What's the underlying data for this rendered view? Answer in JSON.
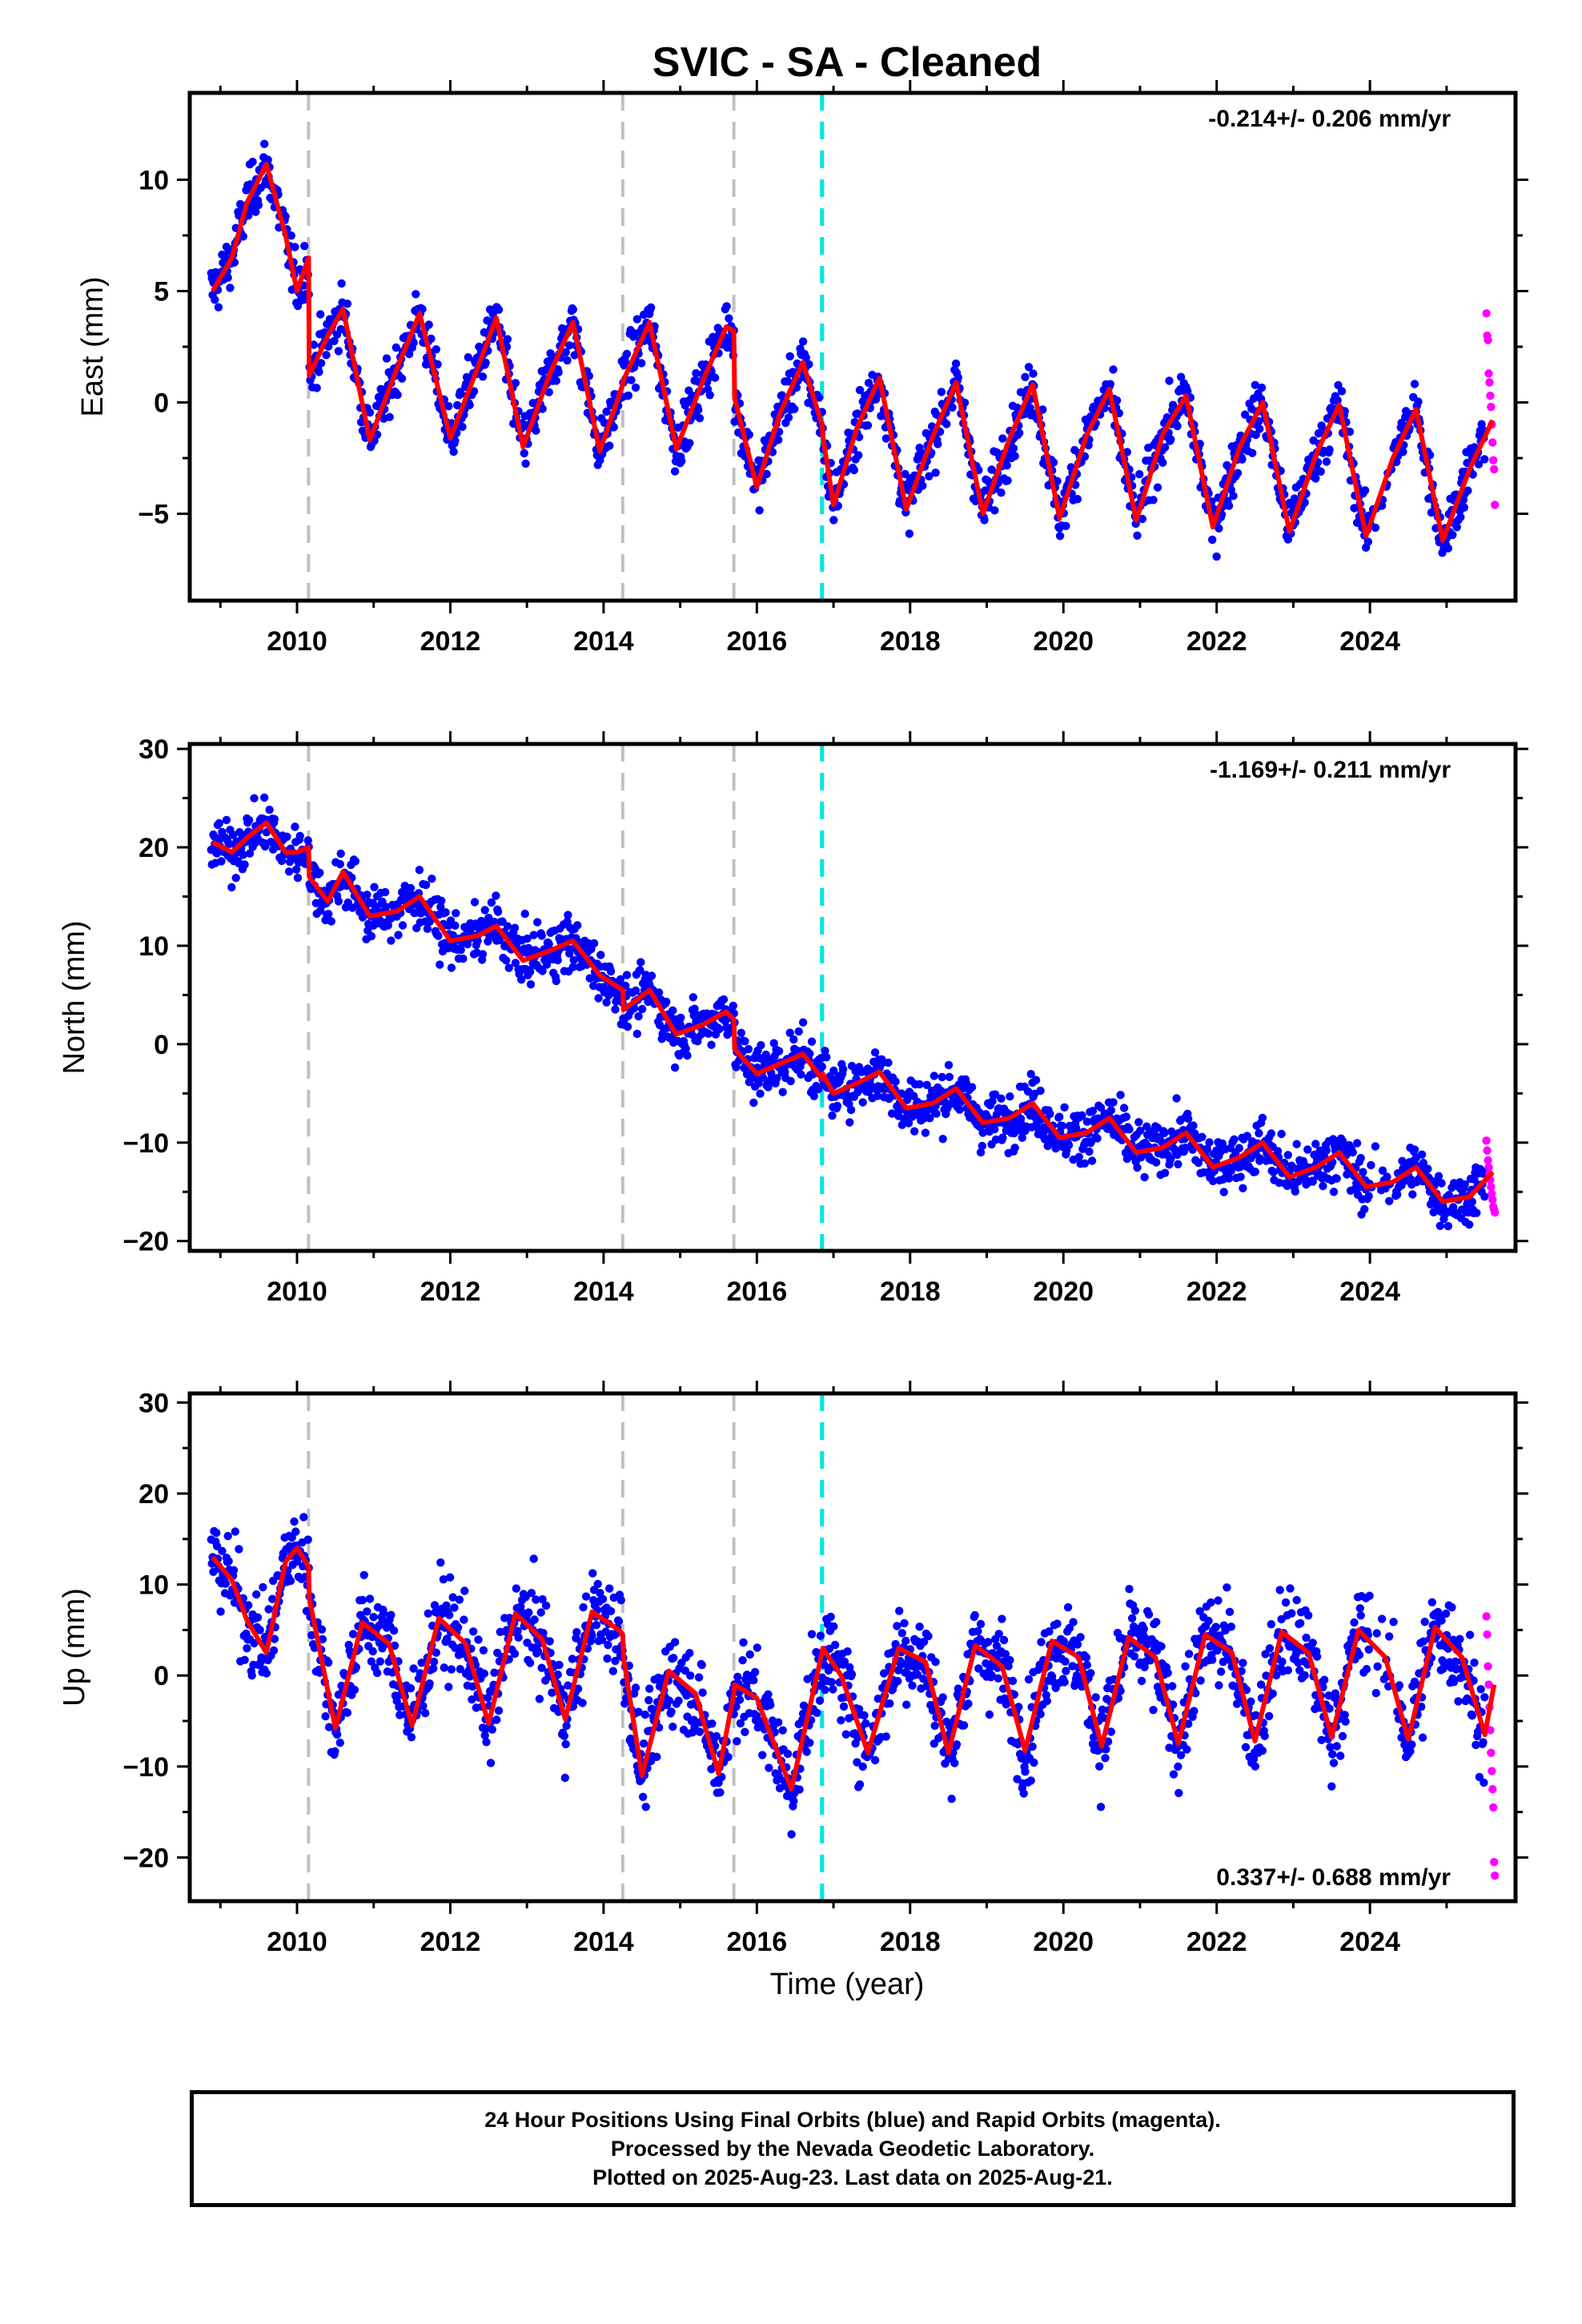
{
  "title": "SVIC  - SA - Cleaned",
  "xlabel": "Time (year)",
  "footer": {
    "line1": "24 Hour Positions Using Final Orbits (blue) and Rapid Orbits (magenta).",
    "line2": "Processed by the Nevada Geodetic Laboratory.",
    "line3": "Plotted on 2025-Aug-23. Last data on 2025-Aug-21."
  },
  "colors": {
    "final": "#0000ff",
    "rapid": "#ff00ff",
    "model": "#ff0000",
    "event_gray": "#c0c0c0",
    "event_cyan": "#00e5e5"
  },
  "chart_data": [
    {
      "type": "scatter",
      "ylabel": "East (mm)",
      "rate_label": "-0.214+/- 0.206 mm/yr",
      "xlim": [
        2008.6,
        2025.9
      ],
      "ylim": [
        -8.9,
        13.9
      ],
      "xticks": [
        2010,
        2012,
        2014,
        2016,
        2018,
        2020,
        2022,
        2024
      ],
      "yticks": [
        -5,
        0,
        5,
        10
      ],
      "events_gray": [
        2010.15,
        2014.25,
        2015.7
      ],
      "event_cyan": 2016.85,
      "model": {
        "x": [
          2008.9,
          2009.15,
          2009.35,
          2009.6,
          2009.85,
          2010.0,
          2010.15,
          2010.16,
          2010.4,
          2010.6,
          2010.95,
          2011.3,
          2011.6,
          2012.0,
          2012.35,
          2012.6,
          2012.95,
          2013.3,
          2013.6,
          2013.95,
          2014.25,
          2014.26,
          2014.6,
          2014.95,
          2015.3,
          2015.6,
          2015.7,
          2015.71,
          2016.0,
          2016.3,
          2016.6,
          2016.85,
          2016.86,
          2017.0,
          2017.3,
          2017.6,
          2017.95,
          2018.3,
          2018.6,
          2018.95,
          2019.3,
          2019.6,
          2019.95,
          2020.3,
          2020.6,
          2020.95,
          2021.3,
          2021.6,
          2021.95,
          2022.3,
          2022.6,
          2022.95,
          2023.3,
          2023.6,
          2023.95,
          2024.3,
          2024.6,
          2024.95,
          2025.3,
          2025.6
        ],
        "y": [
          5.0,
          6.5,
          9.0,
          10.7,
          7.5,
          5.0,
          6.5,
          1.2,
          3.0,
          4.2,
          -1.7,
          1.5,
          4.0,
          -1.6,
          1.5,
          3.8,
          -2.0,
          1.3,
          3.6,
          -2.2,
          0.8,
          1.0,
          3.6,
          -2.1,
          1.0,
          3.4,
          3.2,
          0.2,
          -3.8,
          -0.5,
          1.8,
          -1.0,
          -1.5,
          -4.6,
          -1.2,
          1.1,
          -4.8,
          -1.5,
          0.9,
          -5.0,
          -1.6,
          0.8,
          -5.2,
          -1.5,
          0.6,
          -5.3,
          -1.4,
          0.3,
          -5.6,
          -2.0,
          0.0,
          -5.8,
          -2.3,
          -0.1,
          -6.0,
          -2.5,
          -0.3,
          -6.2,
          -3.0,
          -0.8
        ]
      },
      "rapid_points": {
        "x": [
          2025.52,
          2025.53,
          2025.54,
          2025.55,
          2025.56,
          2025.57,
          2025.58,
          2025.59,
          2025.6,
          2025.61,
          2025.62,
          2025.63
        ],
        "y": [
          4.0,
          3.0,
          2.8,
          1.3,
          0.9,
          0.3,
          -0.2,
          -1.0,
          -1.8,
          -2.6,
          -3.0,
          -4.6
        ]
      }
    },
    {
      "type": "scatter",
      "ylabel": "North (mm)",
      "rate_label": "-1.169+/- 0.211 mm/yr",
      "xlim": [
        2008.6,
        2025.9
      ],
      "ylim": [
        -21.0,
        30.5
      ],
      "xticks": [
        2010,
        2012,
        2014,
        2016,
        2018,
        2020,
        2022,
        2024
      ],
      "yticks": [
        -20,
        -10,
        0,
        10,
        20,
        30
      ],
      "events_gray": [
        2010.15,
        2014.25,
        2015.7
      ],
      "event_cyan": 2016.85,
      "model": {
        "x": [
          2008.9,
          2009.15,
          2009.35,
          2009.6,
          2009.85,
          2010.0,
          2010.15,
          2010.16,
          2010.4,
          2010.6,
          2010.95,
          2011.3,
          2011.6,
          2012.0,
          2012.35,
          2012.6,
          2012.95,
          2013.3,
          2013.6,
          2013.95,
          2014.25,
          2014.26,
          2014.6,
          2014.95,
          2015.3,
          2015.6,
          2015.7,
          2015.71,
          2016.0,
          2016.3,
          2016.6,
          2016.85,
          2016.86,
          2017.0,
          2017.3,
          2017.6,
          2017.95,
          2018.3,
          2018.6,
          2018.95,
          2019.3,
          2019.6,
          2019.95,
          2020.3,
          2020.6,
          2020.95,
          2021.3,
          2021.6,
          2021.95,
          2022.3,
          2022.6,
          2022.95,
          2023.3,
          2023.6,
          2023.95,
          2024.3,
          2024.6,
          2024.95,
          2025.3,
          2025.6
        ],
        "y": [
          20.5,
          19.5,
          21.0,
          22.5,
          19.5,
          19.5,
          20.0,
          17.0,
          14.5,
          17.5,
          13.0,
          13.5,
          15.0,
          10.5,
          11.0,
          12.0,
          8.5,
          9.5,
          10.5,
          7.0,
          5.5,
          3.5,
          5.5,
          1.0,
          2.0,
          3.3,
          2.5,
          -0.5,
          -3.0,
          -2.0,
          -1.0,
          -3.5,
          -3.0,
          -5.0,
          -4.0,
          -2.8,
          -6.5,
          -6.0,
          -4.5,
          -8.0,
          -7.5,
          -6.0,
          -9.5,
          -9.0,
          -7.5,
          -11.0,
          -10.5,
          -9.0,
          -12.5,
          -11.5,
          -10.0,
          -13.5,
          -12.5,
          -11.0,
          -14.5,
          -14.0,
          -12.5,
          -16.0,
          -15.5,
          -13.0
        ]
      },
      "rapid_points": {
        "x": [
          2025.52,
          2025.53,
          2025.54,
          2025.55,
          2025.56,
          2025.57,
          2025.58,
          2025.59,
          2025.6,
          2025.61,
          2025.62,
          2025.63
        ],
        "y": [
          -9.8,
          -10.8,
          -11.8,
          -12.5,
          -13.2,
          -13.8,
          -14.5,
          -15.2,
          -15.8,
          -16.5,
          -16.8,
          -17.1
        ]
      }
    },
    {
      "type": "scatter",
      "ylabel": "Up (mm)",
      "rate_label": "0.337+/- 0.688 mm/yr",
      "xlim": [
        2008.6,
        2025.9
      ],
      "ylim": [
        -24.8,
        31.0
      ],
      "xticks": [
        2010,
        2012,
        2014,
        2016,
        2018,
        2020,
        2022,
        2024
      ],
      "yticks": [
        -20,
        -10,
        0,
        10,
        20,
        30
      ],
      "events_gray": [
        2010.15,
        2014.25,
        2015.7
      ],
      "event_cyan": 2016.85,
      "model": {
        "x": [
          2008.9,
          2009.15,
          2009.35,
          2009.6,
          2009.85,
          2010.0,
          2010.15,
          2010.16,
          2010.5,
          2010.85,
          2011.2,
          2011.5,
          2011.85,
          2012.2,
          2012.5,
          2012.85,
          2013.2,
          2013.5,
          2013.85,
          2014.2,
          2014.25,
          2014.26,
          2014.5,
          2014.85,
          2015.2,
          2015.5,
          2015.7,
          2015.71,
          2016.0,
          2016.45,
          2016.85,
          2016.86,
          2017.1,
          2017.45,
          2017.85,
          2018.2,
          2018.5,
          2018.85,
          2019.2,
          2019.5,
          2019.85,
          2020.2,
          2020.5,
          2020.85,
          2021.2,
          2021.5,
          2021.85,
          2022.2,
          2022.5,
          2022.85,
          2023.2,
          2023.5,
          2023.85,
          2024.2,
          2024.5,
          2024.85,
          2025.2,
          2025.5,
          2025.62
        ],
        "y": [
          13.0,
          10.5,
          6.0,
          2.5,
          12.5,
          14.0,
          12.0,
          8.5,
          -5.8,
          5.8,
          3.5,
          -5.5,
          6.3,
          3.5,
          -5.3,
          6.8,
          4.0,
          -4.8,
          7.0,
          5.0,
          4.5,
          2.0,
          -11.0,
          0.5,
          -2.0,
          -10.8,
          -2.0,
          -1.0,
          -2.5,
          -12.5,
          2.5,
          3.0,
          0.0,
          -8.5,
          3.0,
          1.5,
          -8.5,
          3.3,
          1.0,
          -8.3,
          3.8,
          2.0,
          -7.8,
          4.2,
          2.0,
          -7.5,
          4.5,
          2.5,
          -7.2,
          4.8,
          2.5,
          -6.8,
          5.0,
          2.0,
          -7.0,
          5.3,
          2.0,
          -6.5,
          -1.0
        ]
      },
      "rapid_points": {
        "x": [
          2025.52,
          2025.53,
          2025.54,
          2025.55,
          2025.56,
          2025.57,
          2025.58,
          2025.59,
          2025.6,
          2025.61,
          2025.62,
          2025.63
        ],
        "y": [
          6.5,
          4.5,
          1.0,
          -1.0,
          -3.5,
          -6.0,
          -8.5,
          -10.5,
          -12.5,
          -14.5,
          -20.5,
          -22.0
        ]
      }
    }
  ]
}
